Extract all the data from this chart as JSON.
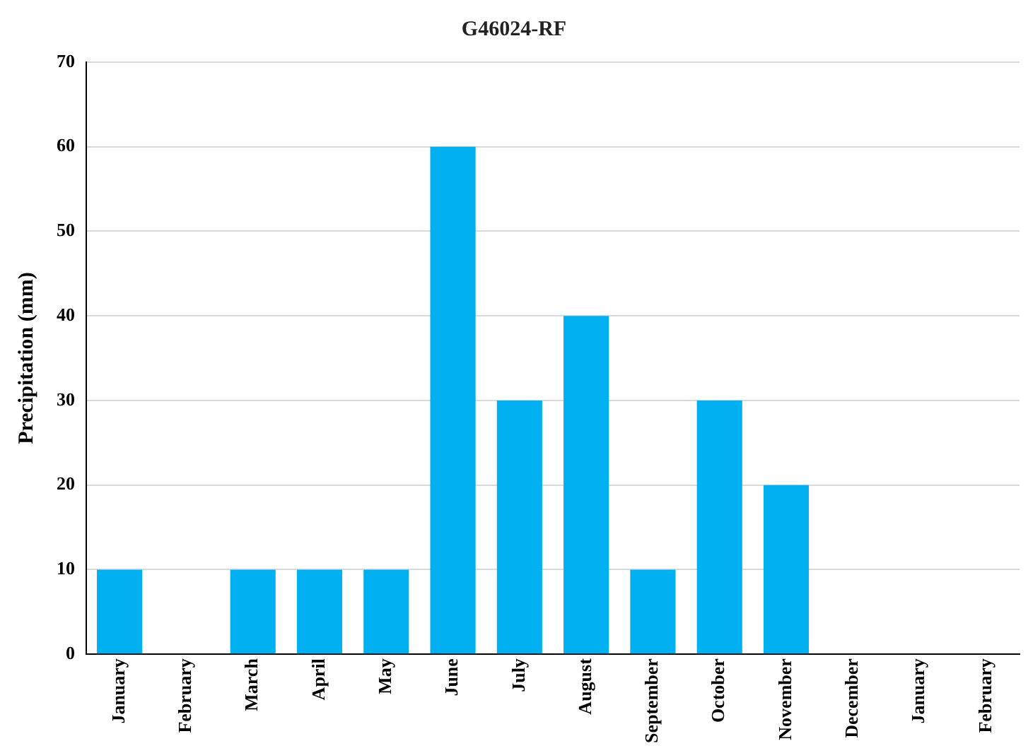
{
  "chart_data": {
    "type": "bar",
    "title": "G46024-RF",
    "ylabel": "Precipitation (mm)",
    "categories": [
      "January",
      "February",
      "March",
      "April",
      "May",
      "June",
      "July",
      "August",
      "September",
      "October",
      "November",
      "December",
      "January",
      "February"
    ],
    "values": [
      10,
      0,
      10,
      10,
      10,
      60,
      30,
      40,
      10,
      30,
      20,
      0,
      0,
      0
    ],
    "color": "#00b0f0",
    "ylim": [
      0,
      70
    ],
    "yticks": [
      0,
      10,
      20,
      30,
      40,
      50,
      60,
      70
    ],
    "grid": "y",
    "legend": false
  }
}
